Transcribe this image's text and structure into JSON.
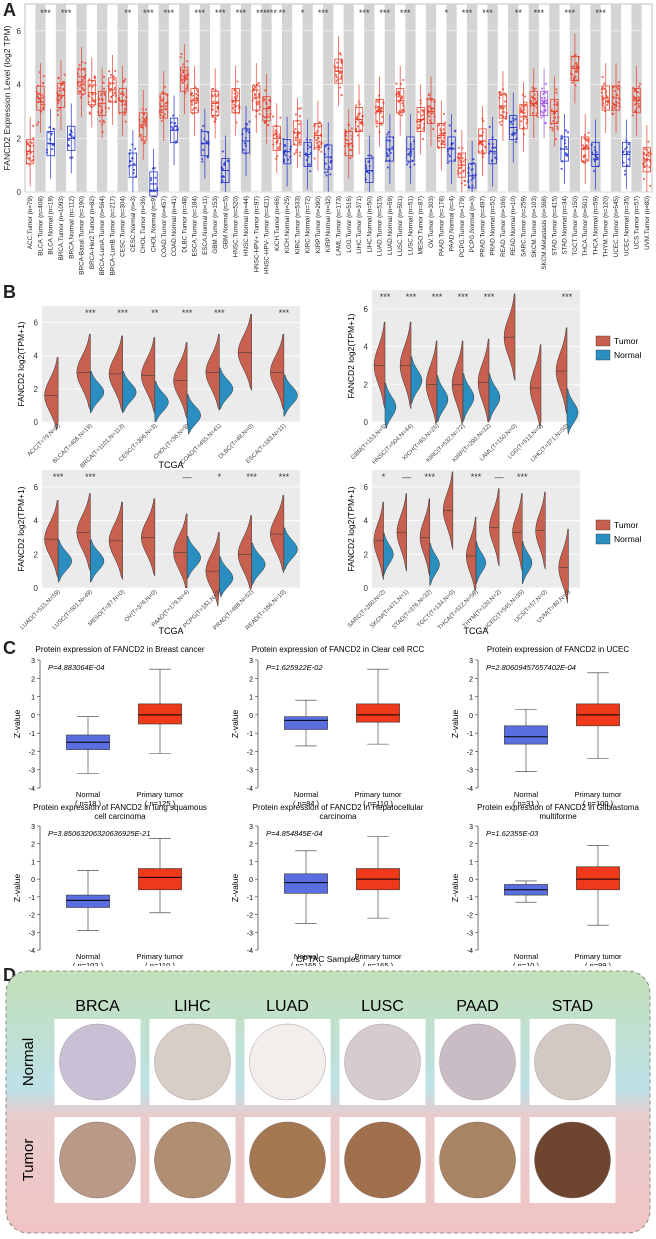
{
  "panel_labels": {
    "a": "A",
    "b": "B",
    "c": "C",
    "d": "D"
  },
  "colors": {
    "tumor": "#e8402c",
    "normal": "#2233cc",
    "vtumor": "#c8604f",
    "vnormal": "#2a8fc0",
    "ptumor": "#ee3a1a",
    "pnormal": "#5a6ee0"
  },
  "chart_data": [
    {
      "type": "box_scatter",
      "id": "A",
      "ylabel": "FANCD2 Expression Level (log2 TPM)",
      "ylim": [
        0,
        7
      ],
      "yticks": [
        "0",
        "2",
        "4",
        "6"
      ],
      "categories": [
        "ACC.Tumor (n=79)",
        "BLCA.Tumor (n=408)",
        "BLCA.Normal (n=19)",
        "BRCA.Tumor (n=1093)",
        "BRCA.Normal (n=112)",
        "BRCA-Basal.Tumor (n=190)",
        "BRCA-Her2.Tumor (n=82)",
        "BRCA-LumA.Tumor (n=564)",
        "BRCA-LumB.Tumor (n=217)",
        "CESC.Tumor (n=304)",
        "CESC.Normal (n=3)",
        "CHOL.Tumor (n=36)",
        "CHOL.Normal (n=9)",
        "COAD.Tumor (n=457)",
        "COAD.Normal (n=41)",
        "DLBC.Tumor (n=48)",
        "ESCA.Tumor (n=184)",
        "ESCA.Normal (n=11)",
        "GBM.Tumor (n=153)",
        "GBM.Normal (n=5)",
        "HNSC.Tumor (n=520)",
        "HNSC.Normal (n=44)",
        "HNSC-HPV+.Tumor (n=97)",
        "HNSC-HPV-.Tumor (n=421)",
        "KICH.Tumor (n=66)",
        "KICH.Normal (n=25)",
        "KIRC.Tumor (n=533)",
        "KIRC.Normal (n=72)",
        "KIRP.Tumor (n=290)",
        "KIRP.Normal (n=32)",
        "LAML.Tumor (n=173)",
        "LGG.Tumor (n=516)",
        "LIHC.Tumor (n=371)",
        "LIHC.Normal (n=50)",
        "LUAD.Tumor (n=515)",
        "LUAD.Normal (n=59)",
        "LUSC.Tumor (n=501)",
        "LUSC.Normal (n=51)",
        "MESO.Tumor (n=87)",
        "OV.Tumor (n=303)",
        "PAAD.Tumor (n=178)",
        "PAAD.Normal (n=4)",
        "PCPG.Tumor (n=179)",
        "PCPG.Normal (n=3)",
        "PRAD.Tumor (n=497)",
        "PRAD.Normal (n=52)",
        "READ.Tumor (n=166)",
        "READ.Normal (n=10)",
        "SARC.Tumor (n=259)",
        "SKCM.Tumor (n=103)",
        "SKCM.Metastasis (n=368)",
        "STAD.Tumor (n=415)",
        "STAD.Normal (n=34)",
        "TGCT.Tumor (n=150)",
        "THCA.Tumor (n=501)",
        "THCA.Normal (n=59)",
        "THYM.Tumor (n=120)",
        "UCEC.Tumor (n=545)",
        "UCEC.Normal (n=35)",
        "UCS.Tumor (n=57)",
        "UVM.Tumor (n=80)"
      ],
      "kinds": [
        "T",
        "T",
        "N",
        "T",
        "N",
        "T",
        "T",
        "T",
        "T",
        "T",
        "N",
        "T",
        "N",
        "T",
        "N",
        "T",
        "T",
        "N",
        "T",
        "N",
        "T",
        "N",
        "T",
        "T",
        "T",
        "N",
        "T",
        "N",
        "T",
        "N",
        "T",
        "T",
        "T",
        "N",
        "T",
        "N",
        "T",
        "N",
        "T",
        "T",
        "T",
        "N",
        "T",
        "N",
        "T",
        "N",
        "T",
        "N",
        "T",
        "T",
        "M",
        "T",
        "N",
        "T",
        "T",
        "N",
        "T",
        "T",
        "N",
        "T",
        "T"
      ],
      "medians": [
        1.5,
        3.5,
        1.8,
        3.6,
        2.0,
        4.1,
        3.7,
        3.3,
        3.8,
        3.4,
        1.0,
        2.5,
        0.3,
        3.2,
        2.3,
        4.2,
        3.4,
        1.8,
        3.3,
        0.8,
        3.4,
        1.9,
        3.5,
        3.1,
        2.0,
        1.5,
        2.2,
        1.4,
        2.1,
        1.3,
        4.5,
        1.8,
        2.7,
        0.8,
        3.0,
        1.6,
        3.4,
        1.6,
        2.7,
        3.0,
        2.1,
        1.6,
        1.0,
        0.6,
        1.9,
        1.5,
        3.2,
        2.4,
        2.8,
        3.3,
        3.3,
        3.0,
        1.6,
        4.6,
        1.6,
        1.4,
        3.5,
        3.5,
        1.4,
        3.4,
        1.2
      ],
      "sig": [
        "",
        "***",
        "",
        "***",
        "",
        "",
        "",
        "",
        "",
        "**",
        "",
        "***",
        "",
        "***",
        "",
        "",
        "***",
        "",
        "***",
        "",
        "***",
        "",
        "***",
        "***",
        "**",
        "",
        "*",
        "",
        "***",
        "",
        "",
        "",
        "***",
        "",
        "***",
        "",
        "***",
        "",
        "",
        "",
        "*",
        "",
        "***",
        "",
        "***",
        "",
        "",
        "**",
        "",
        "***",
        "",
        "",
        "***",
        "",
        "",
        "***",
        "",
        "",
        ""
      ]
    },
    {
      "type": "violin",
      "id": "B1",
      "xlabel": "TCGA",
      "ylabel": "FANCD2 log2(TPM+1)",
      "ylim": [
        0,
        7
      ],
      "yticks": [
        "0",
        "2",
        "4",
        "6"
      ],
      "categories": [
        "ACC(T=79,N=0)",
        "BLCA(T=408,N=19)",
        "BRCA(T=1101,N=113)",
        "CESC(T=306,N=3)",
        "CHOL(T=36,N=9)",
        "COAD(T=455,N=41)",
        "DLBC(T=48,N=0)",
        "ESCA(T=183,N=11)"
      ],
      "tumor": [
        1.6,
        3.0,
        2.9,
        2.8,
        2.5,
        3.0,
        4.2,
        3.0
      ],
      "normal": [
        null,
        1.8,
        1.8,
        1.2,
        0.4,
        2.0,
        null,
        1.6
      ],
      "sig": [
        "",
        "***",
        "***",
        "**",
        "***",
        "***",
        "",
        "***"
      ]
    },
    {
      "type": "violin",
      "id": "B2",
      "xlabel": "",
      "ylabel": "FANCD2 log2(TPM+1)",
      "ylim": [
        0,
        7
      ],
      "yticks": [
        "0",
        "2",
        "4",
        "6"
      ],
      "categories": [
        "GBM(T=153,N=5)",
        "HNSC(T=504,N=44)",
        "KICH(T=65,N=25)",
        "KIRC(T=532,N=72)",
        "KIRP(T=290,N=32)",
        "LAML(T=150,N=0)",
        "LGG(T=513,N=0)",
        "LIHC(T=371,N=50)"
      ],
      "tumor": [
        3.0,
        3.0,
        2.0,
        2.0,
        2.1,
        4.5,
        1.8,
        2.7
      ],
      "normal": [
        0.8,
        2.2,
        1.2,
        1.3,
        1.3,
        null,
        null,
        0.5
      ],
      "sig": [
        "***",
        "***",
        "***",
        "***",
        "***",
        "",
        "",
        "***"
      ]
    },
    {
      "type": "violin",
      "id": "B3",
      "xlabel": "TCGA",
      "ylabel": "FANCD2 log2(TPM+1)",
      "ylim": [
        0,
        7
      ],
      "yticks": [
        "0",
        "2",
        "4",
        "6"
      ],
      "categories": [
        "LUAD(T=515,N=59)",
        "LUSC(T=501,N=49)",
        "MESO(T=87,N=0)",
        "OV(T=376,N=0)",
        "PAAD(T=179,N=4)",
        "PCPG(T=181,N=3)",
        "PRAD(T=498,N=52)",
        "READ(T=166,N=10)"
      ],
      "tumor": [
        2.9,
        3.3,
        2.8,
        3.0,
        2.1,
        1.0,
        2.0,
        3.2
      ],
      "normal": [
        1.6,
        1.6,
        null,
        null,
        1.8,
        0.6,
        1.4,
        2.3
      ],
      "sig": [
        "***",
        "***",
        "",
        "",
        "—",
        "*",
        "***",
        "***"
      ]
    },
    {
      "type": "violin",
      "id": "B4",
      "xlabel": "TCGA",
      "ylabel": "FANCD2 log2(TPM+1)",
      "ylim": [
        0,
        7
      ],
      "yticks": [
        "0",
        "2",
        "4",
        "6"
      ],
      "categories": [
        "SARC(T=260,N=2)",
        "SKCM(T=471,N=1)",
        "STAD(T=376,N=32)",
        "TGCT(T=134,N=0)",
        "THCA(T=512,N=58)",
        "THYM(T=120,N=2)",
        "UCEC(T=545,N=35)",
        "UCS(T=57,N=0)",
        "UVM(T=80,N=0)"
      ],
      "tumor": [
        2.8,
        3.3,
        3.0,
        4.6,
        1.9,
        3.6,
        3.3,
        3.4,
        1.2
      ],
      "normal": [
        2.0,
        null,
        1.4,
        null,
        1.5,
        null,
        1.5,
        null,
        null
      ],
      "sig": [
        "*",
        "—",
        "***",
        "",
        "***",
        "—",
        "***",
        "",
        ""
      ]
    },
    {
      "type": "boxplot_pairs",
      "id": "C",
      "xlabel": "CPTAC Samples",
      "ylabel": "Z-value",
      "ylim": [
        -4,
        3
      ],
      "yticks": [
        "-4",
        "-3",
        "-2",
        "-1",
        "0",
        "1",
        "2",
        "3"
      ],
      "group_labels": [
        "Normal",
        "Primary tumor"
      ],
      "panels": [
        {
          "title": "Protein expression of FANCD2 in Breast cancer",
          "title2": "",
          "p": "P=4.883064E-04",
          "n_normal": "( n=18 )",
          "n_tumor": "( n=125 )",
          "normal": {
            "min": -3.2,
            "q1": -1.9,
            "med": -1.5,
            "q3": -1.1,
            "max": -0.1
          },
          "tumor": {
            "min": -2.1,
            "q1": -0.5,
            "med": 0.0,
            "q3": 0.6,
            "max": 2.5
          }
        },
        {
          "title": "Protein expression of FANCD2 in Clear cell RCC",
          "title2": "",
          "p": "P=1.625922E-02",
          "n_normal": "( n=84 )",
          "n_tumor": "( n=110 )",
          "normal": {
            "min": -1.7,
            "q1": -0.8,
            "med": -0.3,
            "q3": -0.1,
            "max": 0.8
          },
          "tumor": {
            "min": -1.6,
            "q1": -0.4,
            "med": 0.0,
            "q3": 0.6,
            "max": 2.5
          }
        },
        {
          "title": "Protein expression of FANCD2 in UCEC",
          "title2": "",
          "p": "P=2.80609457657402E-04",
          "n_normal": "( n=31 )",
          "n_tumor": "( n=100 )",
          "normal": {
            "min": -3.1,
            "q1": -1.6,
            "med": -1.2,
            "q3": -0.6,
            "max": 0.3
          },
          "tumor": {
            "min": -2.4,
            "q1": -0.6,
            "med": 0.0,
            "q3": 0.6,
            "max": 2.3
          }
        },
        {
          "title": "Protein expression of FANCD2 in lung squamous",
          "title2": "cell carcinoma",
          "p": "P=3.85063206320636925E-21",
          "n_normal": "( n=102 )",
          "n_tumor": "( n=110 )",
          "normal": {
            "min": -2.9,
            "q1": -1.6,
            "med": -1.2,
            "q3": -0.9,
            "max": 0.5
          },
          "tumor": {
            "min": -1.9,
            "q1": -0.6,
            "med": 0.1,
            "q3": 0.6,
            "max": 2.3
          }
        },
        {
          "title": "Protein expression of FANCD2 in Hepatocellular",
          "title2": "carcinoma",
          "p": "P=4.854845E-04",
          "n_normal": "( n=165 )",
          "n_tumor": "( n=165 )",
          "normal": {
            "min": -2.5,
            "q1": -0.8,
            "med": -0.2,
            "q3": 0.3,
            "max": 1.6
          },
          "tumor": {
            "min": -2.2,
            "q1": -0.6,
            "med": 0.0,
            "q3": 0.6,
            "max": 2.4
          }
        },
        {
          "title": "Protein expression of FANCD2 in Gliblastoma",
          "title2": "multiforme",
          "p": "P=1.62355E-03",
          "n_normal": "( n=10 )",
          "n_tumor": "( n=99 )",
          "normal": {
            "min": -1.3,
            "q1": -0.9,
            "med": -0.6,
            "q3": -0.3,
            "max": -0.1
          },
          "tumor": {
            "min": -2.6,
            "q1": -0.6,
            "med": 0.0,
            "q3": 0.7,
            "max": 1.9
          }
        }
      ]
    },
    {
      "type": "image_grid",
      "id": "D",
      "columns": [
        "BRCA",
        "LIHC",
        "LUAD",
        "LUSC",
        "PAAD",
        "STAD"
      ],
      "rows": [
        "Normal",
        "Tumor"
      ],
      "normal_fill": [
        "#c8c0d4",
        "#d8cec8",
        "#f2eeec",
        "#d6ccd0",
        "#cabcc4",
        "#d4c8c4"
      ],
      "tumor_fill": [
        "#b89a86",
        "#b08e72",
        "#a47850",
        "#a0704c",
        "#a88462",
        "#6e4630"
      ]
    }
  ]
}
